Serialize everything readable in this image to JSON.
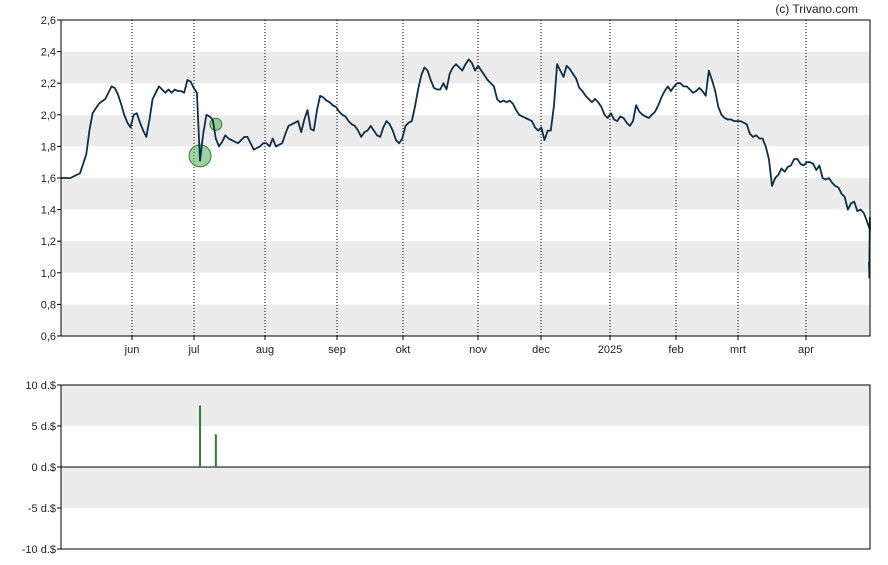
{
  "credit": "(c) Trivano.com",
  "colors": {
    "band": "#ececec",
    "line": "#0d3048",
    "dividend": "#2e7d32",
    "marker": "#4caf50",
    "grid": "#000000"
  },
  "chart_data": [
    {
      "type": "line",
      "x_labels": [
        "jun",
        "jul",
        "aug",
        "sep",
        "okt",
        "nov",
        "dec",
        "2025",
        "feb",
        "mrt",
        "apr"
      ],
      "y_ticks": [
        "2,6",
        "2,4",
        "2,2",
        "2,0",
        "1,8",
        "1,6",
        "1,4",
        "1,2",
        "1,0",
        "0,8",
        "0,6"
      ],
      "ylim": [
        0.6,
        2.6
      ],
      "x_range": [
        0,
        256
      ],
      "grid": "dotted vertical at months",
      "series": [
        {
          "points": [
            [
              0,
              1.6
            ],
            [
              3,
              1.6
            ],
            [
              5,
              1.62
            ],
            [
              6,
              1.63
            ],
            [
              8,
              1.75
            ],
            [
              9,
              1.9
            ],
            [
              10,
              2.01
            ],
            [
              12,
              2.07
            ],
            [
              14,
              2.1
            ],
            [
              16,
              2.18
            ],
            [
              17,
              2.17
            ],
            [
              18,
              2.13
            ],
            [
              19,
              2.07
            ],
            [
              20,
              2.0
            ],
            [
              21,
              1.95
            ],
            [
              22,
              1.92
            ],
            [
              23,
              2.0
            ],
            [
              24,
              2.01
            ],
            [
              25,
              1.95
            ],
            [
              26,
              1.9
            ],
            [
              27,
              1.86
            ],
            [
              28,
              1.97
            ],
            [
              29,
              2.1
            ],
            [
              30,
              2.14
            ],
            [
              31,
              2.18
            ],
            [
              32,
              2.16
            ],
            [
              33,
              2.14
            ],
            [
              34,
              2.16
            ],
            [
              35,
              2.14
            ],
            [
              36,
              2.16
            ],
            [
              37,
              2.15
            ],
            [
              38,
              2.15
            ],
            [
              39,
              2.14
            ],
            [
              40,
              2.22
            ],
            [
              41,
              2.21
            ],
            [
              42,
              2.17
            ],
            [
              43,
              2.14
            ],
            [
              44,
              1.71
            ],
            [
              45,
              1.88
            ],
            [
              46,
              2.0
            ],
            [
              47,
              1.99
            ],
            [
              48,
              1.97
            ],
            [
              49,
              1.85
            ],
            [
              50,
              1.8
            ],
            [
              51,
              1.83
            ],
            [
              52,
              1.87
            ],
            [
              53,
              1.85
            ],
            [
              54,
              1.84
            ],
            [
              55,
              1.83
            ],
            [
              56,
              1.82
            ],
            [
              57,
              1.84
            ],
            [
              58,
              1.86
            ],
            [
              59,
              1.86
            ],
            [
              60,
              1.82
            ],
            [
              61,
              1.78
            ],
            [
              62,
              1.79
            ],
            [
              63,
              1.8
            ],
            [
              64,
              1.82
            ],
            [
              65,
              1.82
            ],
            [
              66,
              1.8
            ],
            [
              67,
              1.85
            ],
            [
              68,
              1.8
            ],
            [
              69,
              1.81
            ],
            [
              70,
              1.82
            ],
            [
              71,
              1.88
            ],
            [
              72,
              1.93
            ],
            [
              73,
              1.94
            ],
            [
              74,
              1.95
            ],
            [
              75,
              1.96
            ],
            [
              76,
              1.89
            ],
            [
              77,
              1.97
            ],
            [
              78,
              2.03
            ],
            [
              79,
              1.91
            ],
            [
              80,
              1.9
            ],
            [
              81,
              2.03
            ],
            [
              82,
              2.12
            ],
            [
              83,
              2.11
            ],
            [
              84,
              2.09
            ],
            [
              85,
              2.08
            ],
            [
              86,
              2.06
            ],
            [
              87,
              2.05
            ],
            [
              88,
              2.02
            ],
            [
              89,
              2.0
            ],
            [
              90,
              1.99
            ],
            [
              91,
              1.96
            ],
            [
              92,
              1.94
            ],
            [
              93,
              1.93
            ],
            [
              94,
              1.9
            ],
            [
              95,
              1.86
            ],
            [
              96,
              1.89
            ],
            [
              97,
              1.9
            ],
            [
              98,
              1.93
            ],
            [
              99,
              1.9
            ],
            [
              100,
              1.87
            ],
            [
              101,
              1.86
            ],
            [
              102,
              1.92
            ],
            [
              103,
              1.96
            ],
            [
              104,
              1.94
            ],
            [
              105,
              1.9
            ],
            [
              106,
              1.84
            ],
            [
              107,
              1.82
            ],
            [
              108,
              1.85
            ],
            [
              109,
              1.93
            ],
            [
              110,
              1.95
            ],
            [
              111,
              1.96
            ],
            [
              112,
              2.05
            ],
            [
              113,
              2.16
            ],
            [
              114,
              2.25
            ],
            [
              115,
              2.3
            ],
            [
              116,
              2.28
            ],
            [
              117,
              2.22
            ],
            [
              118,
              2.17
            ],
            [
              119,
              2.16
            ],
            [
              120,
              2.16
            ],
            [
              121,
              2.2
            ],
            [
              122,
              2.16
            ],
            [
              123,
              2.26
            ],
            [
              124,
              2.3
            ],
            [
              125,
              2.32
            ],
            [
              126,
              2.3
            ],
            [
              127,
              2.28
            ],
            [
              128,
              2.32
            ],
            [
              129,
              2.35
            ],
            [
              130,
              2.33
            ],
            [
              131,
              2.28
            ],
            [
              132,
              2.31
            ],
            [
              133,
              2.28
            ],
            [
              134,
              2.25
            ],
            [
              135,
              2.22
            ],
            [
              136,
              2.2
            ],
            [
              137,
              2.18
            ],
            [
              138,
              2.1
            ],
            [
              139,
              2.08
            ],
            [
              140,
              2.09
            ],
            [
              141,
              2.08
            ],
            [
              142,
              2.09
            ],
            [
              143,
              2.07
            ],
            [
              144,
              2.03
            ],
            [
              145,
              2.0
            ],
            [
              146,
              1.99
            ],
            [
              147,
              1.98
            ],
            [
              148,
              1.97
            ],
            [
              149,
              1.96
            ],
            [
              150,
              1.92
            ],
            [
              151,
              1.9
            ],
            [
              152,
              1.92
            ],
            [
              153,
              1.84
            ],
            [
              154,
              1.9
            ],
            [
              155,
              1.9
            ],
            [
              156,
              2.06
            ],
            [
              157,
              2.32
            ],
            [
              158,
              2.28
            ],
            [
              159,
              2.24
            ],
            [
              160,
              2.31
            ],
            [
              161,
              2.29
            ],
            [
              162,
              2.26
            ],
            [
              163,
              2.23
            ],
            [
              164,
              2.17
            ],
            [
              165,
              2.15
            ],
            [
              166,
              2.12
            ],
            [
              167,
              2.1
            ],
            [
              168,
              2.08
            ],
            [
              169,
              2.1
            ],
            [
              170,
              2.08
            ],
            [
              171,
              2.05
            ],
            [
              172,
              2.0
            ],
            [
              173,
              1.98
            ],
            [
              174,
              2.01
            ],
            [
              175,
              1.97
            ],
            [
              176,
              1.96
            ],
            [
              177,
              1.99
            ],
            [
              178,
              1.98
            ],
            [
              179,
              1.95
            ],
            [
              180,
              1.93
            ],
            [
              181,
              1.96
            ],
            [
              182,
              2.06
            ],
            [
              183,
              2.02
            ],
            [
              184,
              2.0
            ],
            [
              185,
              1.99
            ],
            [
              186,
              1.98
            ],
            [
              187,
              2.0
            ],
            [
              188,
              2.02
            ],
            [
              189,
              2.06
            ],
            [
              190,
              2.11
            ],
            [
              191,
              2.15
            ],
            [
              192,
              2.18
            ],
            [
              193,
              2.15
            ],
            [
              194,
              2.18
            ],
            [
              195,
              2.2
            ],
            [
              196,
              2.2
            ],
            [
              197,
              2.18
            ],
            [
              198,
              2.18
            ],
            [
              199,
              2.16
            ],
            [
              200,
              2.14
            ],
            [
              201,
              2.15
            ],
            [
              202,
              2.17
            ],
            [
              203,
              2.15
            ],
            [
              204,
              2.12
            ],
            [
              205,
              2.28
            ],
            [
              206,
              2.22
            ],
            [
              207,
              2.15
            ],
            [
              208,
              2.05
            ],
            [
              209,
              2.0
            ],
            [
              210,
              1.98
            ],
            [
              211,
              1.97
            ],
            [
              212,
              1.97
            ],
            [
              213,
              1.96
            ],
            [
              214,
              1.96
            ],
            [
              215,
              1.96
            ],
            [
              216,
              1.95
            ],
            [
              217,
              1.94
            ],
            [
              218,
              1.88
            ]
          ]
        }
      ]
    },
    {
      "type": "bar",
      "y_ticks": [
        "10 d.$",
        "5 d.$",
        "0 d.$",
        "-5 d.$",
        "-10 d.$"
      ],
      "ylim": [
        -10,
        10
      ],
      "series": [
        {
          "points": [
            [
              44,
              7.5
            ],
            [
              49,
              4.0
            ]
          ]
        }
      ]
    }
  ]
}
